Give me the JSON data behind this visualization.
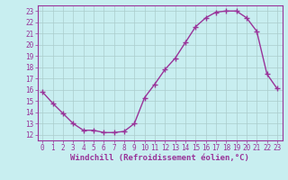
{
  "x": [
    0,
    1,
    2,
    3,
    4,
    5,
    6,
    7,
    8,
    9,
    10,
    11,
    12,
    13,
    14,
    15,
    16,
    17,
    18,
    19,
    20,
    21,
    22,
    23
  ],
  "y": [
    15.8,
    14.8,
    13.9,
    13.0,
    12.4,
    12.4,
    12.2,
    12.2,
    12.3,
    13.0,
    15.3,
    16.5,
    17.8,
    18.8,
    20.2,
    21.6,
    22.4,
    22.9,
    23.0,
    23.0,
    22.4,
    21.2,
    17.4,
    16.1
  ],
  "line_color": "#993399",
  "marker": "+",
  "marker_size": 4,
  "linewidth": 1.0,
  "xlabel": "Windchill (Refroidissement éolien,°C)",
  "xlabel_fontsize": 6.5,
  "bg_color": "#c8eef0",
  "grid_color": "#aacccc",
  "ylim": [
    11.5,
    23.5
  ],
  "xlim": [
    -0.5,
    23.5
  ],
  "yticks": [
    12,
    13,
    14,
    15,
    16,
    17,
    18,
    19,
    20,
    21,
    22,
    23
  ],
  "xticks": [
    0,
    1,
    2,
    3,
    4,
    5,
    6,
    7,
    8,
    9,
    10,
    11,
    12,
    13,
    14,
    15,
    16,
    17,
    18,
    19,
    20,
    21,
    22,
    23
  ],
  "tick_fontsize": 5.5,
  "tick_color": "#993399",
  "spine_color": "#993399"
}
